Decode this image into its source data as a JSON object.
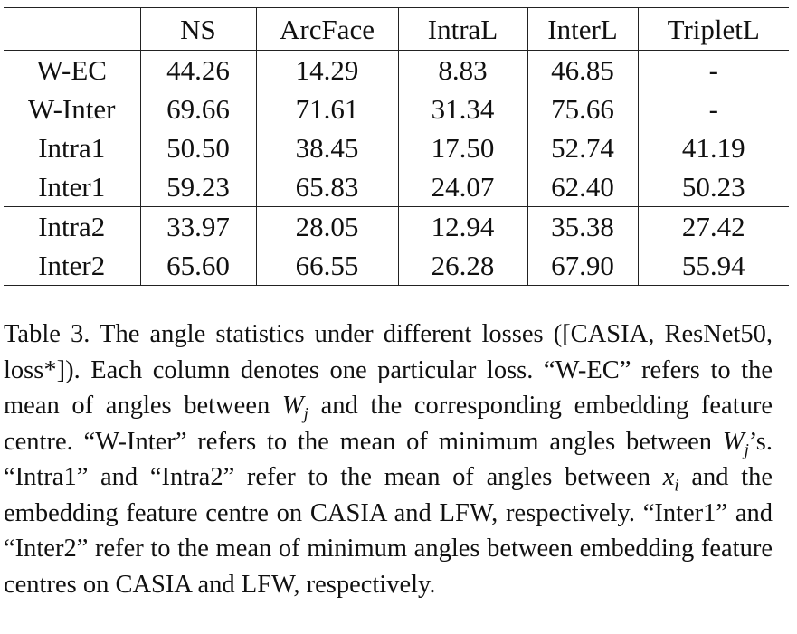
{
  "table": {
    "header": [
      "",
      "NS",
      "ArcFace",
      "IntraL",
      "InterL",
      "TripletL"
    ],
    "groups": [
      [
        [
          "W-EC",
          "44.26",
          "14.29",
          "8.83",
          "46.85",
          "-"
        ],
        [
          "W-Inter",
          "69.66",
          "71.61",
          "31.34",
          "75.66",
          "-"
        ],
        [
          "Intra1",
          "50.50",
          "38.45",
          "17.50",
          "52.74",
          "41.19"
        ],
        [
          "Inter1",
          "59.23",
          "65.83",
          "24.07",
          "62.40",
          "50.23"
        ]
      ],
      [
        [
          "Intra2",
          "33.97",
          "28.05",
          "12.94",
          "35.38",
          "27.42"
        ],
        [
          "Inter2",
          "65.60",
          "66.55",
          "26.28",
          "67.90",
          "55.94"
        ]
      ]
    ]
  },
  "caption": {
    "parts": [
      "Table 3. The angle statistics under different losses ([CASIA, ResNet50, loss*]). Each column denotes one particular loss. “W-EC” refers to the mean of angles between ",
      "W",
      "j",
      " and the corresponding embedding feature centre. “W-Inter” refers to the mean of minimum angles between ",
      "W",
      "j",
      "’s. “Intra1” and “Intra2” refer to the mean of angles between ",
      "x",
      "i",
      " and the embedding feature centre on CASIA and LFW, respectively. “Inter1” and “Inter2” refer to the mean of minimum angles between embedding feature centres on CASIA and LFW, respectively."
    ]
  }
}
